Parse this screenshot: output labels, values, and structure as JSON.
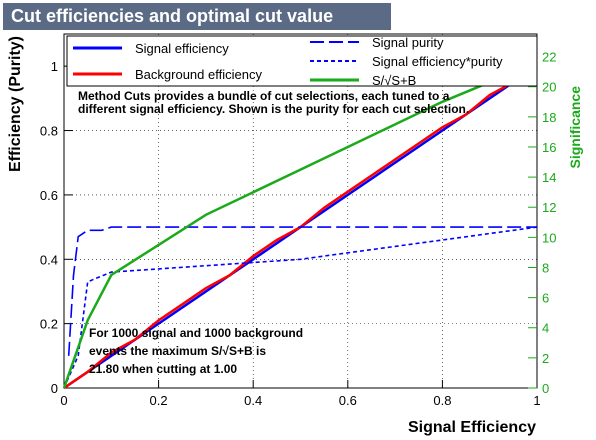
{
  "colors": {
    "title_bg": "#5b6b85",
    "signal_efficiency": "#0000ff",
    "background_efficiency": "#ff0000",
    "signal_purity": "#0000ff",
    "signal_eff_purity": "#0000ff",
    "significance": "#1aaa1a",
    "right_axis": "#1aaa1a"
  },
  "chart_data": {
    "type": "line",
    "title": "Cut efficiencies and optimal cut value",
    "xlabel": "Signal Efficiency",
    "ylabel": "Efficiency (Purity)",
    "y2label": "Significance",
    "xlim": [
      0,
      1
    ],
    "ylim": [
      0,
      1.1
    ],
    "y2lim": [
      0,
      23.5
    ],
    "grid": true,
    "legend_position": "top",
    "x_ticks": [
      "0",
      "0.2",
      "0.4",
      "0.6",
      "0.8",
      "1"
    ],
    "y_ticks": [
      "0",
      "0.2",
      "0.4",
      "0.6",
      "0.8",
      "1"
    ],
    "y2_ticks": [
      "0",
      "2",
      "4",
      "6",
      "8",
      "10",
      "12",
      "14",
      "16",
      "18",
      "20",
      "22"
    ],
    "series": [
      {
        "key": "sig_eff",
        "name": "Signal efficiency",
        "axis": "left",
        "style": "solid",
        "x": [
          0,
          0.2,
          0.4,
          0.6,
          0.8,
          1.0
        ],
        "values": [
          0,
          0.2,
          0.4,
          0.6,
          0.8,
          1.0
        ]
      },
      {
        "key": "bkg_eff",
        "name": "Background efficiency",
        "axis": "left",
        "style": "solid",
        "x": [
          0,
          0.05,
          0.1,
          0.15,
          0.2,
          0.25,
          0.3,
          0.35,
          0.4,
          0.45,
          0.5,
          0.55,
          0.6,
          0.65,
          0.7,
          0.75,
          0.8,
          0.85,
          0.9,
          0.95,
          1.0
        ],
        "values": [
          0,
          0.05,
          0.11,
          0.15,
          0.21,
          0.26,
          0.31,
          0.35,
          0.41,
          0.46,
          0.5,
          0.56,
          0.61,
          0.66,
          0.71,
          0.76,
          0.81,
          0.85,
          0.91,
          0.95,
          1.0
        ]
      },
      {
        "key": "purity",
        "name": "Signal purity",
        "axis": "left",
        "style": "longdash",
        "x": [
          0.01,
          0.02,
          0.03,
          0.05,
          0.08,
          0.1,
          0.2,
          0.4,
          0.6,
          0.8,
          1.0
        ],
        "values": [
          0.1,
          0.35,
          0.47,
          0.49,
          0.49,
          0.5,
          0.5,
          0.5,
          0.5,
          0.5,
          0.5
        ]
      },
      {
        "key": "eff_purity",
        "name": "Signal efficiency*purity",
        "axis": "left",
        "style": "shortdash",
        "x": [
          0,
          0.03,
          0.05,
          0.1,
          0.2,
          0.3,
          0.4,
          0.5,
          0.6,
          0.7,
          0.8,
          0.9,
          1.0
        ],
        "values": [
          0,
          0.1,
          0.33,
          0.36,
          0.37,
          0.38,
          0.39,
          0.4,
          0.42,
          0.44,
          0.46,
          0.48,
          0.5
        ]
      },
      {
        "key": "significance",
        "name": "S/√S+B",
        "axis": "right",
        "style": "solid",
        "x": [
          0,
          0.05,
          0.1,
          0.2,
          0.3,
          0.4,
          0.5,
          0.6,
          0.7,
          0.8,
          0.9,
          0.98,
          1.0
        ],
        "values": [
          0,
          4.5,
          7.5,
          9.5,
          11.5,
          13,
          14.5,
          16,
          17.5,
          19,
          20.3,
          21.7,
          21.8
        ]
      }
    ],
    "legend": {
      "sig_eff": "Signal efficiency",
      "bkg_eff": "Background efficiency",
      "purity": "Signal purity",
      "eff_purity": "Signal efficiency*purity",
      "significance": "S/√S+B"
    },
    "annotations": {
      "method_line1": "Method Cuts provides a bundle of cut selections, each tuned to a",
      "method_line2": "different signal efficiency. Shown is the purity for each cut selection.",
      "result_line1": "For 1000 signal and 1000 background",
      "result_line2": "events the maximum S/√S+B is",
      "result_line3": "21.80 when cutting at  1.00"
    }
  }
}
